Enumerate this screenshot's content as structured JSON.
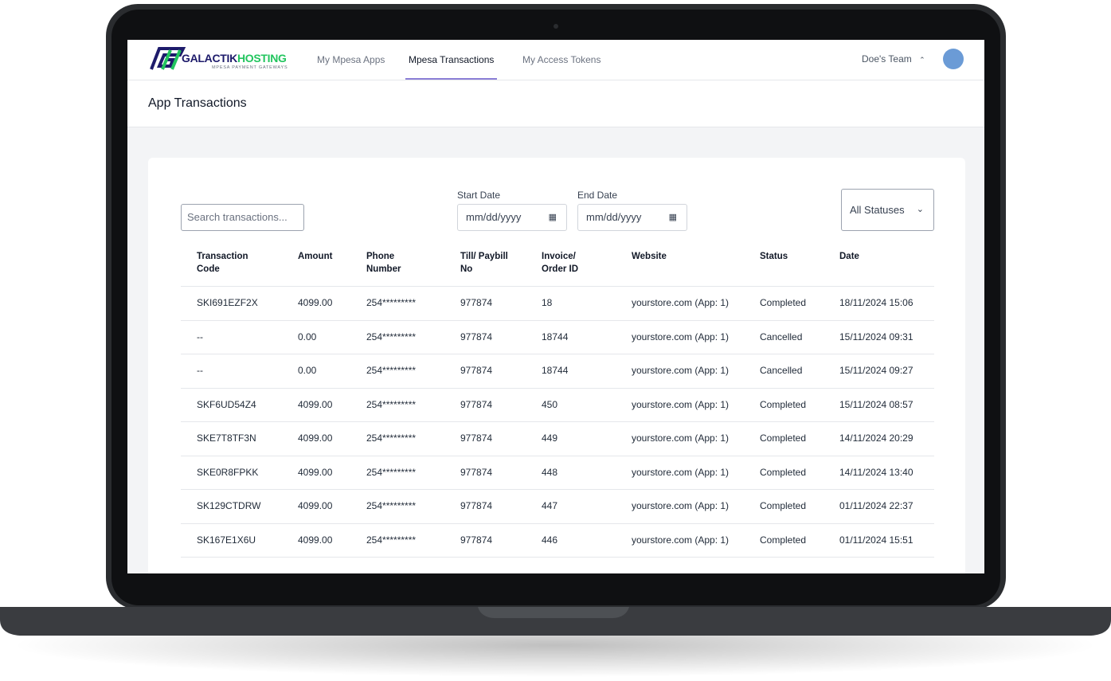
{
  "brand": {
    "name_1": "GALACTIK",
    "name_2": "HOSTING",
    "tagline": "MPESA PAYMENT GATEWAYS"
  },
  "nav": {
    "items": [
      "My Mpesa Apps",
      "Mpesa Transactions",
      "My Access Tokens"
    ],
    "active": 1,
    "team": "Doe's Team"
  },
  "page_title": "App Transactions",
  "filters": {
    "search_placeholder": "Search transactions...",
    "start_label": "Start Date",
    "end_label": "End Date",
    "start_placeholder": "mm/dd/yyyy",
    "end_placeholder": "mm/dd/yyyy",
    "status": "All Statuses"
  },
  "table": {
    "headers": [
      "Transaction Code",
      "Amount",
      "Phone Number",
      "Till/ Paybill No",
      "Invoice/ Order ID",
      "Website",
      "Status",
      "Date"
    ],
    "rows": [
      [
        "SKI691EZF2X",
        "4099.00",
        "254*********",
        "977874",
        "18",
        "yourstore.com (App: 1)",
        "Completed",
        "18/11/2024 15:06"
      ],
      [
        "--",
        "0.00",
        "254*********",
        "977874",
        "18744",
        "yourstore.com (App: 1)",
        "Cancelled",
        "15/11/2024 09:31"
      ],
      [
        "--",
        "0.00",
        "254*********",
        "977874",
        "18744",
        "yourstore.com (App: 1)",
        "Cancelled",
        "15/11/2024 09:27"
      ],
      [
        "SKF6UD54Z4",
        "4099.00",
        "254*********",
        "977874",
        "450",
        "yourstore.com (App: 1)",
        "Completed",
        "15/11/2024 08:57"
      ],
      [
        "SKE7T8TF3N",
        "4099.00",
        "254*********",
        "977874",
        "449",
        "yourstore.com (App: 1)",
        "Completed",
        "14/11/2024 20:29"
      ],
      [
        "SKE0R8FPKK",
        "4099.00",
        "254*********",
        "977874",
        "448",
        "yourstore.com (App: 1)",
        "Completed",
        "14/11/2024 13:40"
      ],
      [
        "SK129CTDRW",
        "4099.00",
        "254*********",
        "977874",
        "447",
        "yourstore.com (App: 1)",
        "Completed",
        "01/11/2024 22:37"
      ],
      [
        "SK167E1X6U",
        "4099.00",
        "254*********",
        "977874",
        "446",
        "yourstore.com (App: 1)",
        "Completed",
        "01/11/2024 15:51"
      ]
    ]
  }
}
